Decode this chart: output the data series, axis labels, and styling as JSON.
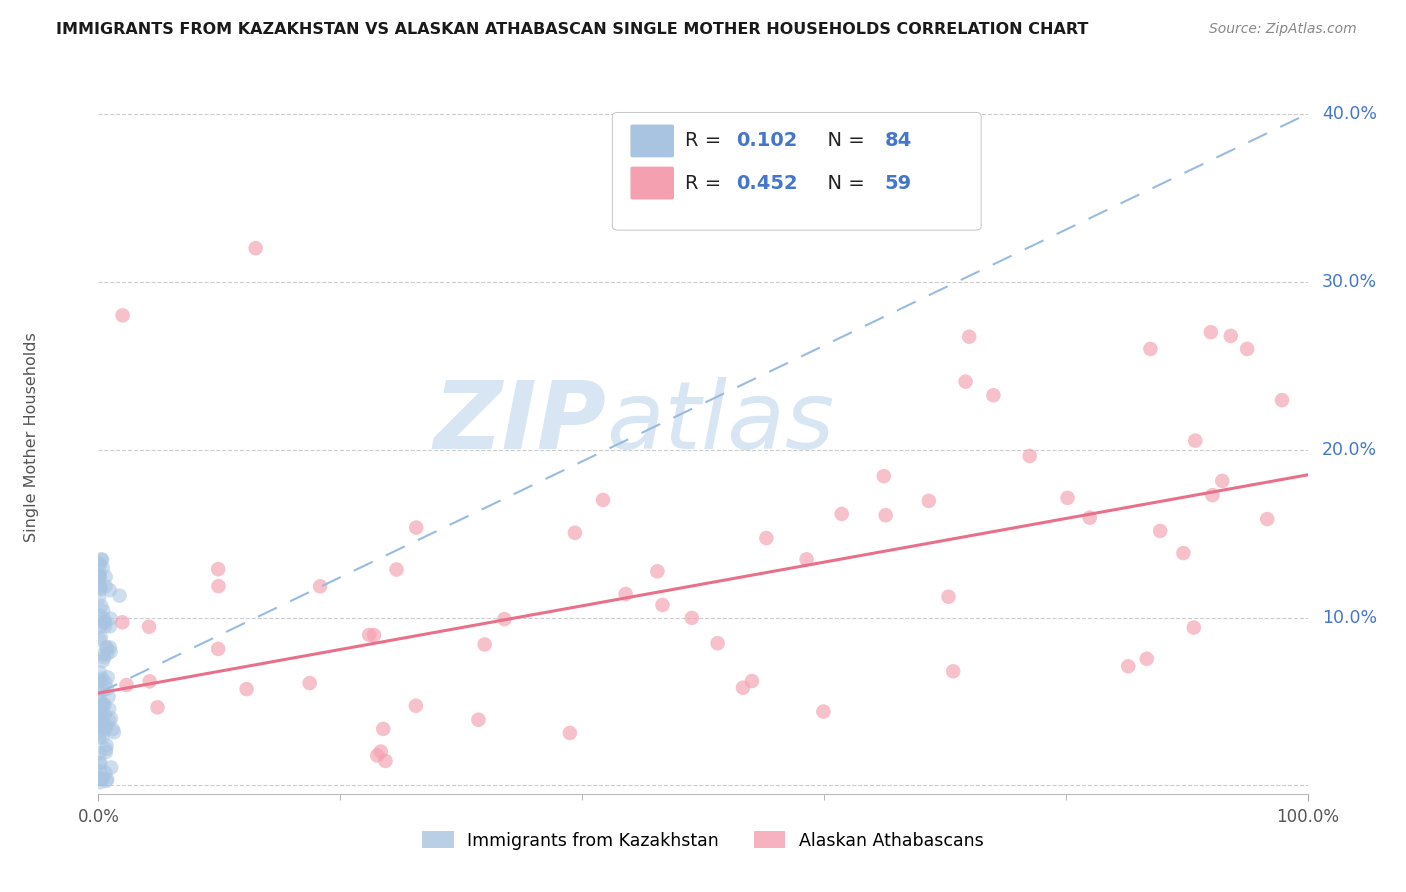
{
  "title": "IMMIGRANTS FROM KAZAKHSTAN VS ALASKAN ATHABASCAN SINGLE MOTHER HOUSEHOLDS CORRELATION CHART",
  "source": "Source: ZipAtlas.com",
  "ylabel": "Single Mother Households",
  "legend_label1": "Immigrants from Kazakhstan",
  "legend_label2": "Alaskan Athabascans",
  "R1": 0.102,
  "N1": 84,
  "R2": 0.452,
  "N2": 59,
  "color_blue": "#A8C4E0",
  "color_pink": "#F4A0B0",
  "color_blue_line": "#99BBDD",
  "color_pink_line": "#E8708A",
  "color_blue_text": "#4477CC",
  "color_black_text": "#222222",
  "color_label_gray": "#555555",
  "background": "#FFFFFF",
  "grid_color": "#CCCCCC",
  "xlim": [
    0.0,
    1.0
  ],
  "ylim": [
    -0.005,
    0.42
  ],
  "ytick_values": [
    0.0,
    0.1,
    0.2,
    0.3,
    0.4
  ],
  "blue_trend_x": [
    0.0,
    1.0
  ],
  "blue_trend_y": [
    0.055,
    0.4
  ],
  "pink_trend_x": [
    0.0,
    1.0
  ],
  "pink_trend_y": [
    0.055,
    0.185
  ],
  "blue_seed": 77,
  "pink_seed": 88
}
